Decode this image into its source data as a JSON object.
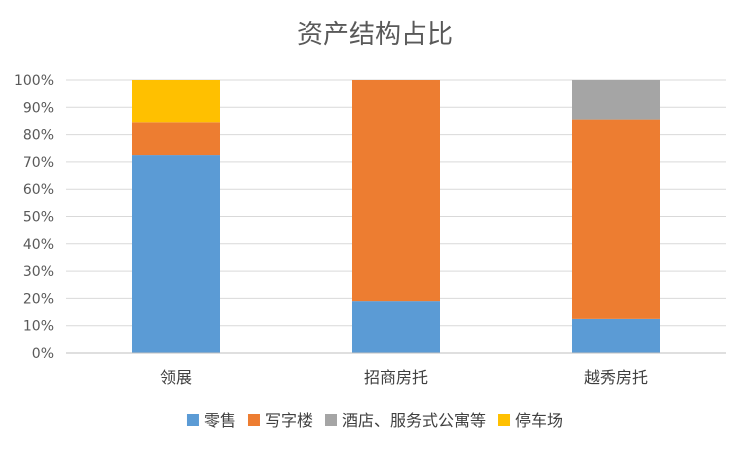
{
  "chart_data": {
    "type": "bar",
    "stacked": true,
    "title": "资产结构占比",
    "xlabel": "",
    "ylabel": "",
    "ylim": [
      0,
      100
    ],
    "y_ticks": [
      "0%",
      "10%",
      "20%",
      "30%",
      "40%",
      "50%",
      "60%",
      "70%",
      "80%",
      "90%",
      "100%"
    ],
    "categories": [
      "领展",
      "招商房托",
      "越秀房托"
    ],
    "series": [
      {
        "name": "零售",
        "color": "#5b9bd5",
        "values": [
          72.5,
          19,
          12.5
        ]
      },
      {
        "name": "写字楼",
        "color": "#ed7d31",
        "values": [
          12,
          81,
          73
        ]
      },
      {
        "name": "酒店、服务式公寓等",
        "color": "#a5a5a5",
        "values": [
          0,
          0,
          14.5
        ]
      },
      {
        "name": "停车场",
        "color": "#ffc000",
        "values": [
          15.5,
          0,
          0
        ]
      }
    ],
    "grid": true,
    "legend_position": "bottom"
  }
}
